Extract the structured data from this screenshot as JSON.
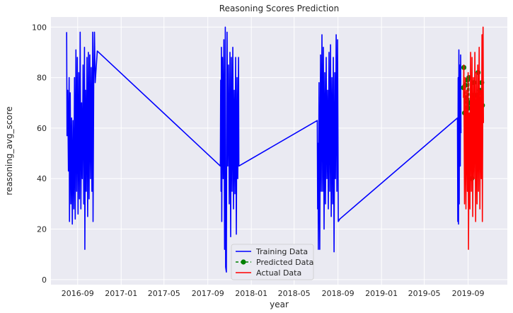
{
  "chart_data": {
    "type": "line",
    "title": "Reasoning Scores Prediction",
    "xlabel": "year",
    "ylabel": "reasoning_avg_score",
    "xlim": [
      "2016-06-18",
      "2019-12-20"
    ],
    "ylim": [
      -2,
      104
    ],
    "x_ticks": [
      "2016-09",
      "2017-01",
      "2017-05",
      "2017-09",
      "2018-01",
      "2018-05",
      "2018-09",
      "2019-01",
      "2019-05",
      "2019-09"
    ],
    "y_ticks": [
      0,
      20,
      40,
      60,
      80,
      100
    ],
    "grid": true,
    "legend_position": "lower-center",
    "colors": {
      "training": "#0000ff",
      "predicted": "#008000",
      "actual": "#ff0000",
      "plot_background": "#eaeaf2",
      "grid": "#ffffff"
    },
    "series": [
      {
        "name": "Training Data",
        "style": "solid",
        "points": [
          [
            "2016-08-01",
            98
          ],
          [
            "2016-08-02",
            57
          ],
          [
            "2016-08-04",
            75
          ],
          [
            "2016-08-06",
            43
          ],
          [
            "2016-08-08",
            80
          ],
          [
            "2016-08-09",
            23
          ],
          [
            "2016-08-11",
            74
          ],
          [
            "2016-08-13",
            30
          ],
          [
            "2016-08-15",
            64
          ],
          [
            "2016-08-17",
            22
          ],
          [
            "2016-08-19",
            63
          ],
          [
            "2016-08-21",
            28
          ],
          [
            "2016-08-23",
            80
          ],
          [
            "2016-08-25",
            24
          ],
          [
            "2016-08-27",
            91
          ],
          [
            "2016-08-29",
            35
          ],
          [
            "2016-08-31",
            88
          ],
          [
            "2016-09-02",
            26
          ],
          [
            "2016-09-04",
            82
          ],
          [
            "2016-09-06",
            32
          ],
          [
            "2016-09-08",
            98
          ],
          [
            "2016-09-10",
            28
          ],
          [
            "2016-09-12",
            70
          ],
          [
            "2016-09-14",
            40
          ],
          [
            "2016-09-16",
            85
          ],
          [
            "2016-09-18",
            30
          ],
          [
            "2016-09-20",
            92
          ],
          [
            "2016-09-21",
            12
          ],
          [
            "2016-09-23",
            75
          ],
          [
            "2016-09-25",
            35
          ],
          [
            "2016-09-27",
            88
          ],
          [
            "2016-09-29",
            25
          ],
          [
            "2016-10-01",
            90
          ],
          [
            "2016-10-03",
            32
          ],
          [
            "2016-10-05",
            89
          ],
          [
            "2016-10-07",
            40
          ],
          [
            "2016-10-09",
            84
          ],
          [
            "2016-10-11",
            35
          ],
          [
            "2016-10-13",
            98
          ],
          [
            "2016-10-14",
            23
          ],
          [
            "2016-10-16",
            80
          ],
          [
            "2016-10-18",
            98
          ],
          [
            "2016-10-20",
            78
          ],
          [
            "2016-10-26",
            90.5
          ],
          [
            "2017-10-06",
            45
          ],
          [
            "2017-10-07",
            79
          ],
          [
            "2017-10-08",
            35
          ],
          [
            "2017-10-09",
            92
          ],
          [
            "2017-10-10",
            23
          ],
          [
            "2017-10-12",
            88
          ],
          [
            "2017-10-14",
            40
          ],
          [
            "2017-10-16",
            95
          ],
          [
            "2017-10-18",
            12
          ],
          [
            "2017-10-20",
            100
          ],
          [
            "2017-10-21",
            5
          ],
          [
            "2017-10-23",
            3
          ],
          [
            "2017-10-25",
            98
          ],
          [
            "2017-10-27",
            45
          ],
          [
            "2017-10-29",
            85
          ],
          [
            "2017-10-31",
            30
          ],
          [
            "2017-11-02",
            90
          ],
          [
            "2017-11-04",
            17
          ],
          [
            "2017-11-06",
            88
          ],
          [
            "2017-11-08",
            35
          ],
          [
            "2017-11-10",
            92
          ],
          [
            "2017-11-12",
            28
          ],
          [
            "2017-11-14",
            75
          ],
          [
            "2017-11-16",
            34
          ],
          [
            "2017-11-18",
            88
          ],
          [
            "2017-11-20",
            18
          ],
          [
            "2017-11-22",
            80
          ],
          [
            "2017-11-24",
            40
          ],
          [
            "2017-11-26",
            88
          ],
          [
            "2017-11-27",
            45
          ],
          [
            "2018-07-05",
            63
          ],
          [
            "2018-07-06",
            28
          ],
          [
            "2018-07-07",
            54
          ],
          [
            "2018-07-08",
            12
          ],
          [
            "2018-07-10",
            78
          ],
          [
            "2018-07-12",
            12
          ],
          [
            "2018-07-14",
            89
          ],
          [
            "2018-07-16",
            35
          ],
          [
            "2018-07-18",
            97
          ],
          [
            "2018-07-20",
            35
          ],
          [
            "2018-07-22",
            92
          ],
          [
            "2018-07-24",
            20
          ],
          [
            "2018-07-26",
            82
          ],
          [
            "2018-07-28",
            30
          ],
          [
            "2018-07-30",
            88
          ],
          [
            "2018-08-01",
            40
          ],
          [
            "2018-08-03",
            75
          ],
          [
            "2018-08-05",
            28
          ],
          [
            "2018-08-07",
            90
          ],
          [
            "2018-08-09",
            35
          ],
          [
            "2018-08-11",
            93
          ],
          [
            "2018-08-13",
            25
          ],
          [
            "2018-08-15",
            80
          ],
          [
            "2018-08-17",
            30
          ],
          [
            "2018-08-19",
            88
          ],
          [
            "2018-08-21",
            11
          ],
          [
            "2018-08-23",
            82
          ],
          [
            "2018-08-25",
            40
          ],
          [
            "2018-08-27",
            97
          ],
          [
            "2018-08-29",
            35
          ],
          [
            "2018-08-31",
            95
          ],
          [
            "2018-09-02",
            23
          ],
          [
            "2018-09-06",
            24
          ],
          [
            "2019-08-02",
            64
          ],
          [
            "2019-08-03",
            23
          ],
          [
            "2019-08-04",
            80
          ],
          [
            "2019-08-05",
            22
          ],
          [
            "2019-08-06",
            91
          ],
          [
            "2019-08-07",
            30
          ],
          [
            "2019-08-08",
            85
          ],
          [
            "2019-08-10",
            45
          ],
          [
            "2019-08-11",
            89
          ],
          [
            "2019-08-12",
            58
          ]
        ]
      },
      {
        "name": "Predicted Data",
        "style": "dashed-markers",
        "points": [
          [
            "2019-08-19",
            76
          ],
          [
            "2019-08-20",
            84
          ],
          [
            "2019-08-22",
            66
          ],
          [
            "2019-08-24",
            77
          ],
          [
            "2019-08-26",
            72
          ],
          [
            "2019-08-28",
            60
          ],
          [
            "2019-08-30",
            79
          ],
          [
            "2019-09-01",
            68
          ],
          [
            "2019-09-03",
            80
          ],
          [
            "2019-09-05",
            57
          ],
          [
            "2019-09-07",
            70
          ],
          [
            "2019-09-09",
            50
          ],
          [
            "2019-09-10",
            44
          ],
          [
            "2019-09-11",
            40
          ],
          [
            "2019-09-13",
            73
          ],
          [
            "2019-09-15",
            62
          ],
          [
            "2019-09-17",
            78
          ],
          [
            "2019-09-19",
            58
          ],
          [
            "2019-09-21",
            70
          ],
          [
            "2019-09-23",
            65
          ],
          [
            "2019-09-25",
            73
          ],
          [
            "2019-09-27",
            60
          ],
          [
            "2019-09-29",
            82
          ],
          [
            "2019-10-01",
            67
          ],
          [
            "2019-10-03",
            75
          ],
          [
            "2019-10-05",
            62
          ],
          [
            "2019-10-07",
            70
          ],
          [
            "2019-10-09",
            78
          ],
          [
            "2019-10-11",
            69
          ]
        ]
      },
      {
        "name": "Actual Data",
        "style": "solid",
        "points": [
          [
            "2019-08-19",
            72
          ],
          [
            "2019-08-20",
            85
          ],
          [
            "2019-08-22",
            30
          ],
          [
            "2019-08-24",
            80
          ],
          [
            "2019-08-26",
            28
          ],
          [
            "2019-08-28",
            75
          ],
          [
            "2019-08-30",
            35
          ],
          [
            "2019-09-01",
            82
          ],
          [
            "2019-09-02",
            12
          ],
          [
            "2019-09-04",
            66
          ],
          [
            "2019-09-06",
            28
          ],
          [
            "2019-09-08",
            90
          ],
          [
            "2019-09-10",
            35
          ],
          [
            "2019-09-12",
            88
          ],
          [
            "2019-09-14",
            25
          ],
          [
            "2019-09-16",
            80
          ],
          [
            "2019-09-18",
            40
          ],
          [
            "2019-09-20",
            90
          ],
          [
            "2019-09-22",
            23
          ],
          [
            "2019-09-24",
            82
          ],
          [
            "2019-09-26",
            30
          ],
          [
            "2019-09-28",
            85
          ],
          [
            "2019-09-30",
            35
          ],
          [
            "2019-10-02",
            92
          ],
          [
            "2019-10-04",
            28
          ],
          [
            "2019-10-06",
            75
          ],
          [
            "2019-10-08",
            40
          ],
          [
            "2019-10-10",
            97
          ],
          [
            "2019-10-11",
            23
          ],
          [
            "2019-10-13",
            100
          ],
          [
            "2019-10-14",
            62
          ]
        ]
      }
    ]
  }
}
